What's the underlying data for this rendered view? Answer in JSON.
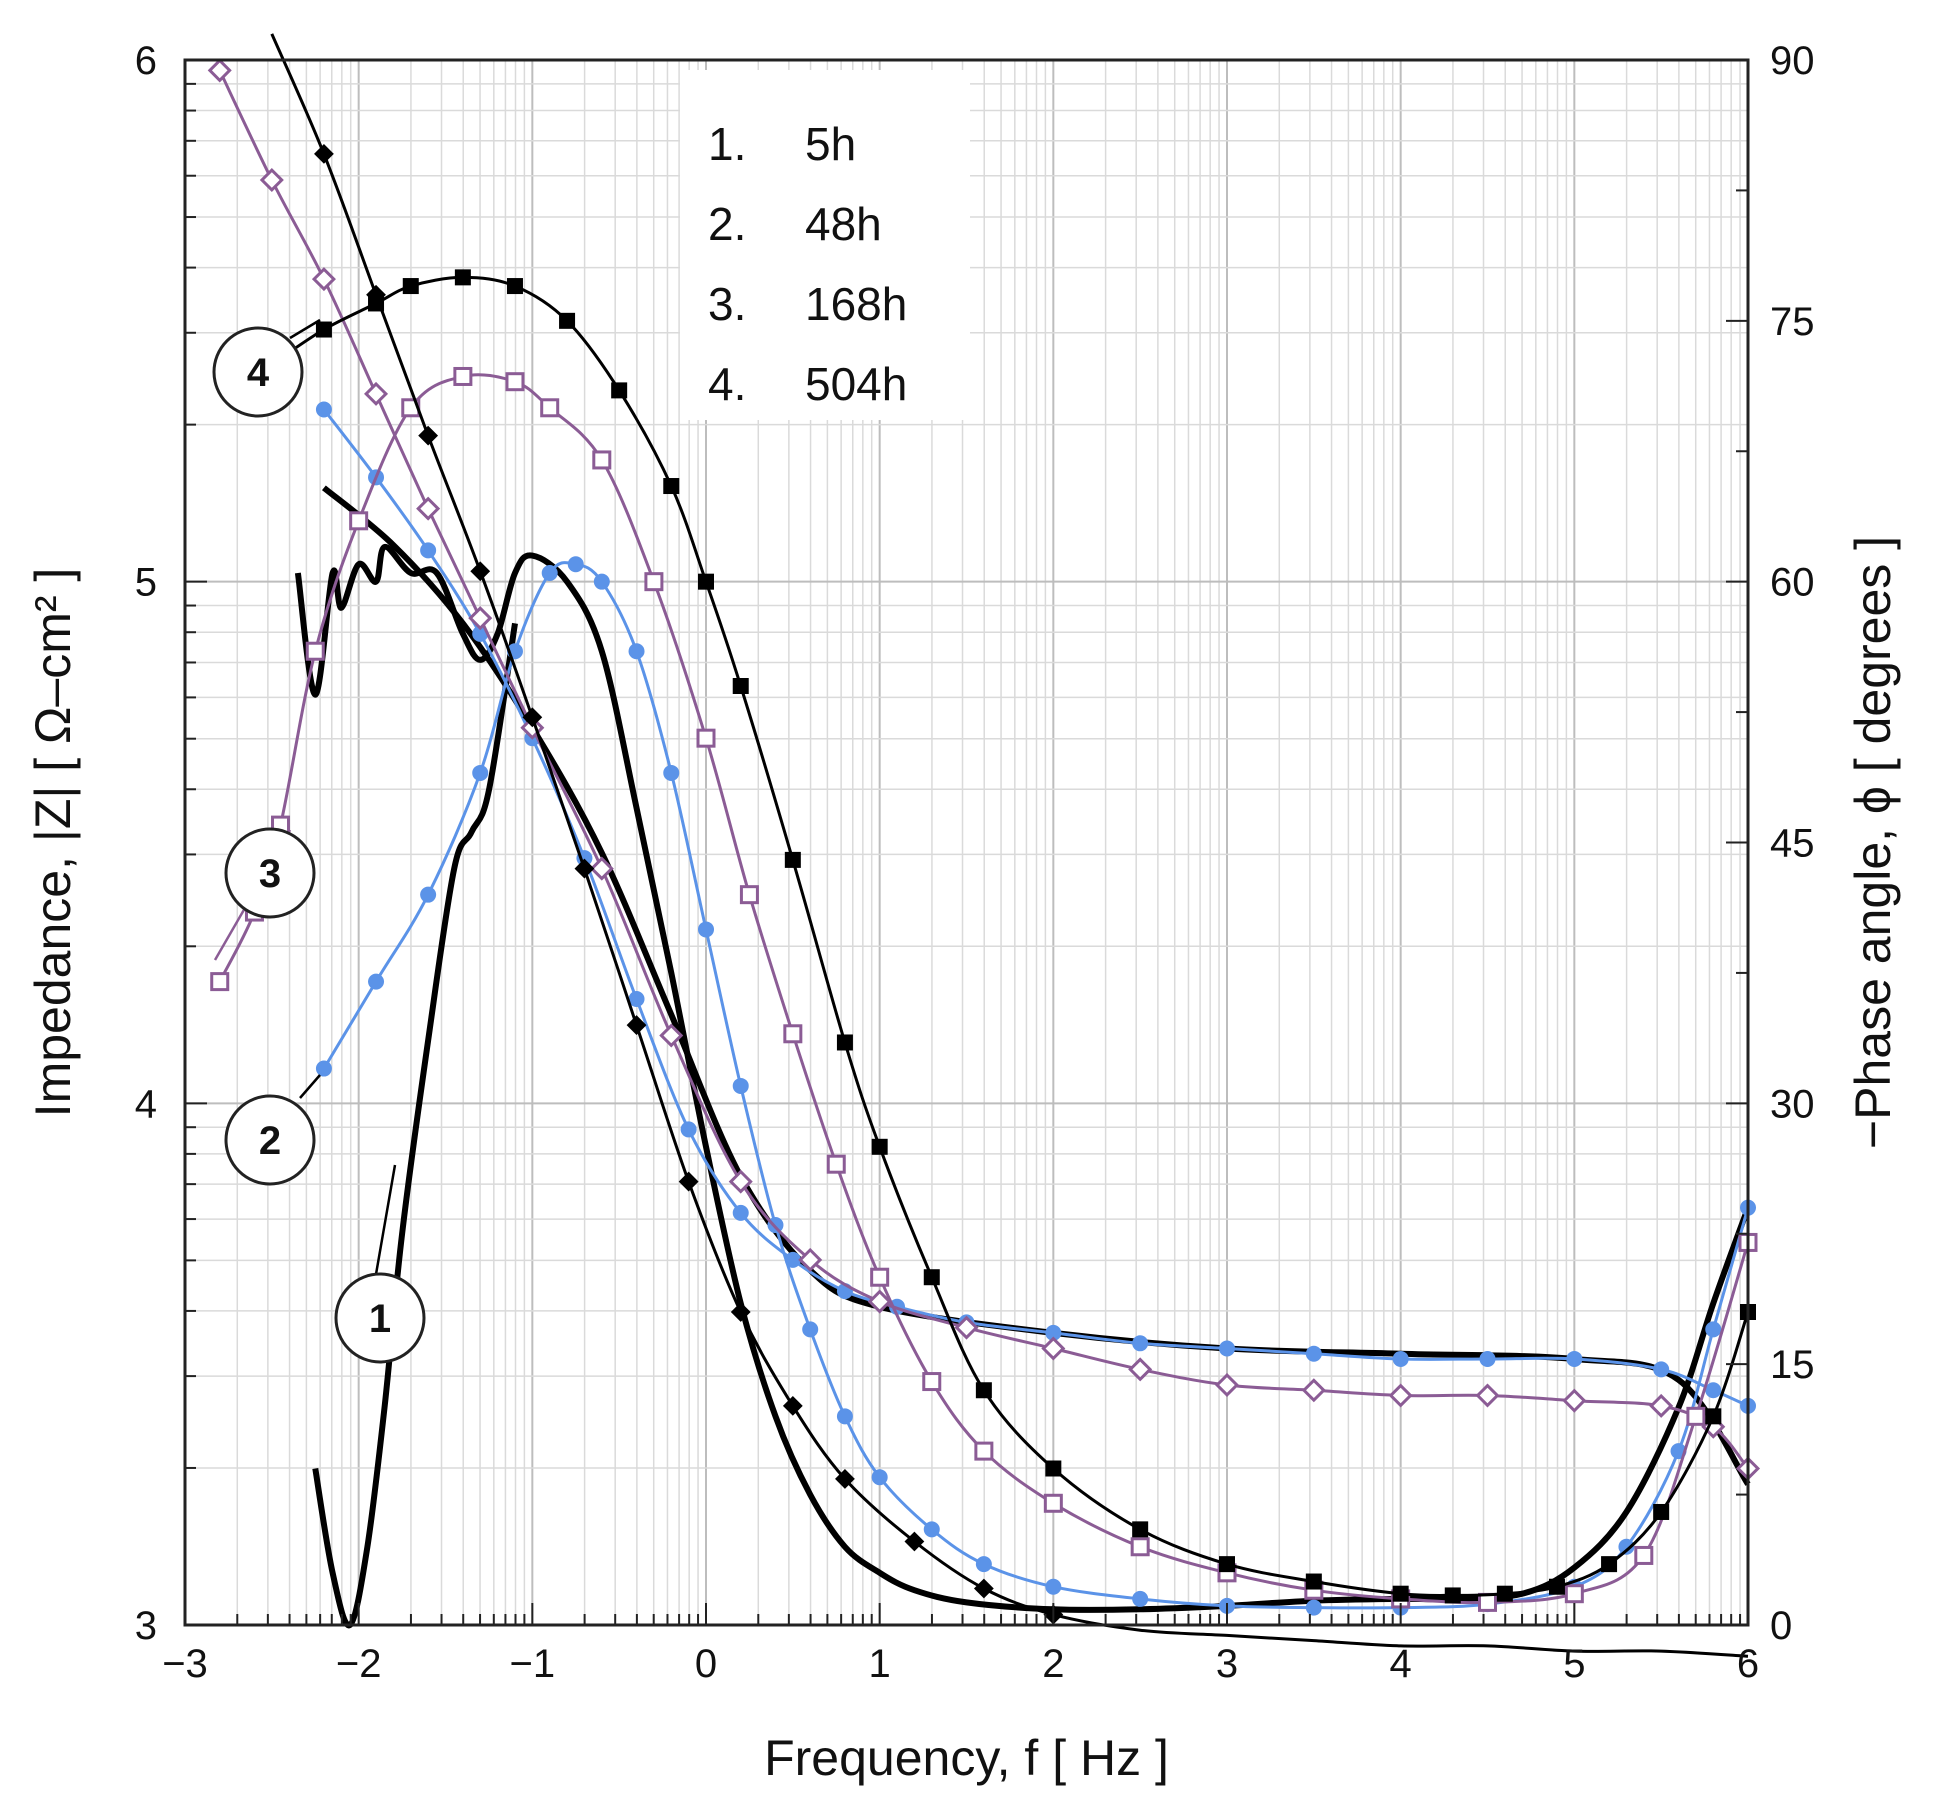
{
  "chart_data": {
    "type": "line",
    "xlabel": "Frequency, f [ Hz ]",
    "ylabel_left": "Impedance, |Z| [ Ω–cm² ]",
    "ylabel_right": "−Phase angle, ϕ [ degrees ]",
    "xlim": [
      -3,
      6
    ],
    "ylim_left": [
      3,
      6
    ],
    "ylim_right": [
      0,
      90
    ],
    "x_scale": "log10 (exponent labels)",
    "y_left_scale": "log10 (exponent labels)",
    "grid": true,
    "x_ticks": [
      "−3",
      "−2",
      "−1",
      "0",
      "1",
      "2",
      "3",
      "4",
      "5",
      "6"
    ],
    "y_left_ticks": [
      "3",
      "4",
      "5",
      "6"
    ],
    "y_right_ticks": [
      "0",
      "15",
      "30",
      "45",
      "60",
      "75",
      "90"
    ],
    "legend": {
      "placement": "top-center",
      "entries": [
        {
          "num": "1.",
          "label": "5h"
        },
        {
          "num": "2.",
          "label": "48h"
        },
        {
          "num": "3.",
          "label": "168h"
        },
        {
          "num": "4.",
          "label": "504h"
        }
      ]
    },
    "callouts": [
      "1",
      "2",
      "3",
      "4"
    ],
    "series": [
      {
        "id": "1",
        "quantity": "impedance",
        "axis": "left",
        "color": "#000000",
        "marker": "none",
        "width": 6,
        "x": [
          -2.2,
          -1.8,
          -1.4,
          -1.0,
          -0.6,
          -0.2,
          0.2,
          0.6,
          1.0,
          2.0,
          3.0,
          4.0,
          5.0,
          5.6,
          6.0
        ],
        "y": [
          5.18,
          5.07,
          4.92,
          4.72,
          4.48,
          4.17,
          3.86,
          3.68,
          3.61,
          3.56,
          3.53,
          3.52,
          3.51,
          3.47,
          3.27
        ]
      },
      {
        "id": "1",
        "quantity": "phase",
        "axis": "right",
        "color": "#000000",
        "marker": "none",
        "width": 6,
        "x": [
          -2.35,
          -2.25,
          -2.15,
          -2.1,
          -2.0,
          -1.9,
          -1.85,
          -1.7,
          -1.55,
          -1.4,
          -1.3,
          -1.2,
          -1.1,
          -1.0,
          -0.8,
          -0.6,
          -0.4,
          -0.2,
          0.0,
          0.2,
          0.4,
          0.6,
          0.8,
          1.0,
          1.2,
          1.5,
          2.0,
          2.5,
          3.0,
          3.5,
          4.0,
          4.3,
          4.7,
          5.0,
          5.3,
          5.6,
          5.8,
          6.0
        ],
        "y": [
          60.5,
          53.5,
          60.5,
          58.5,
          61.0,
          60.0,
          62.0,
          60.5,
          60.5,
          57.0,
          55.5,
          57.0,
          60.5,
          61.5,
          60.0,
          56.0,
          47.0,
          37.5,
          27.5,
          18.5,
          12.0,
          7.5,
          4.5,
          3.0,
          2.0,
          1.3,
          0.9,
          0.9,
          1.1,
          1.4,
          1.5,
          1.5,
          1.8,
          3.3,
          6.5,
          12.5,
          18.5,
          24.0
        ]
      },
      {
        "id": "1",
        "quantity": "impedance-low-frequency-noisy",
        "axis": "left",
        "color": "#000000",
        "marker": "none",
        "width": 6,
        "x": [
          -2.25,
          -2.15,
          -2.05,
          -1.95,
          -1.85,
          -1.75,
          -1.6,
          -1.45,
          -1.35,
          -1.25,
          -1.1
        ],
        "y": [
          3.3,
          3.1,
          3.0,
          3.15,
          3.42,
          3.75,
          4.12,
          4.45,
          4.52,
          4.6,
          4.92
        ]
      },
      {
        "id": "2",
        "quantity": "impedance",
        "axis": "left",
        "color": "#5b93e8",
        "marker": "dot",
        "width": 3,
        "x": [
          -2.2,
          -1.9,
          -1.6,
          -1.3,
          -1.0,
          -0.7,
          -0.4,
          -0.1,
          0.2,
          0.5,
          0.8,
          1.1,
          1.5,
          2.0,
          2.5,
          3.0,
          3.5,
          4.0,
          4.5,
          5.0,
          5.5,
          5.8,
          6.0
        ],
        "y": [
          5.33,
          5.2,
          5.06,
          4.9,
          4.7,
          4.47,
          4.2,
          3.95,
          3.79,
          3.7,
          3.64,
          3.61,
          3.58,
          3.56,
          3.54,
          3.53,
          3.52,
          3.51,
          3.51,
          3.51,
          3.49,
          3.45,
          3.42
        ]
      },
      {
        "id": "2",
        "quantity": "phase",
        "axis": "right",
        "color": "#5b93e8",
        "marker": "dot",
        "width": 3,
        "x": [
          -2.2,
          -1.9,
          -1.6,
          -1.3,
          -1.1,
          -0.9,
          -0.75,
          -0.6,
          -0.4,
          -0.2,
          0.0,
          0.2,
          0.4,
          0.6,
          0.8,
          1.0,
          1.3,
          1.6,
          2.0,
          2.5,
          3.0,
          3.5,
          4.0,
          4.5,
          5.0,
          5.3,
          5.6,
          5.8,
          6.0
        ],
        "y": [
          32.0,
          37.0,
          42.0,
          49.0,
          56.0,
          60.5,
          61.0,
          60.0,
          56.0,
          49.0,
          40.0,
          31.0,
          23.0,
          17.0,
          12.0,
          8.5,
          5.5,
          3.5,
          2.2,
          1.5,
          1.1,
          1.0,
          1.0,
          1.2,
          2.2,
          4.5,
          10.0,
          17.0,
          24.0
        ]
      },
      {
        "id": "3",
        "quantity": "impedance",
        "axis": "left",
        "color": "#8b5c95",
        "marker": "diamond-open",
        "width": 3,
        "x": [
          -2.8,
          -2.5,
          -2.2,
          -1.9,
          -1.6,
          -1.3,
          -1.0,
          -0.6,
          -0.2,
          0.2,
          0.6,
          1.0,
          1.5,
          2.0,
          2.5,
          3.0,
          3.5,
          4.0,
          4.5,
          5.0,
          5.5,
          5.8,
          6.0
        ],
        "y": [
          5.98,
          5.77,
          5.58,
          5.36,
          5.14,
          4.93,
          4.72,
          4.45,
          4.13,
          3.85,
          3.7,
          3.62,
          3.57,
          3.53,
          3.49,
          3.46,
          3.45,
          3.44,
          3.44,
          3.43,
          3.42,
          3.38,
          3.3
        ]
      },
      {
        "id": "3",
        "quantity": "phase",
        "axis": "right",
        "color": "#8b5c95",
        "marker": "square-open",
        "width": 3,
        "x": [
          -2.8,
          -2.6,
          -2.45,
          -2.25,
          -2.0,
          -1.7,
          -1.4,
          -1.1,
          -0.9,
          -0.6,
          -0.3,
          0.0,
          0.25,
          0.5,
          0.75,
          1.0,
          1.3,
          1.6,
          2.0,
          2.5,
          3.0,
          3.5,
          4.0,
          4.5,
          5.0,
          5.4,
          5.7,
          6.0
        ],
        "y": [
          37.0,
          41.0,
          46.0,
          56.0,
          63.5,
          70.0,
          71.8,
          71.5,
          70.0,
          67.0,
          60.0,
          51.0,
          42.0,
          34.0,
          26.5,
          20.0,
          14.0,
          10.0,
          7.0,
          4.5,
          3.0,
          2.0,
          1.5,
          1.3,
          1.8,
          4.0,
          12.0,
          22.0
        ]
      },
      {
        "id": "4",
        "quantity": "impedance",
        "axis": "left",
        "color": "#000000",
        "marker": "diamond-filled",
        "width": 3,
        "x": [
          -2.5,
          -2.2,
          -1.9,
          -1.6,
          -1.3,
          -1.0,
          -0.7,
          -0.4,
          -0.1,
          0.2,
          0.5,
          0.8,
          1.2,
          1.6,
          2.0,
          2.5,
          3.0,
          3.5,
          4.0,
          4.5,
          5.0,
          5.5,
          6.0
        ],
        "y": [
          6.05,
          5.82,
          5.55,
          5.28,
          5.02,
          4.74,
          4.45,
          4.15,
          3.85,
          3.6,
          3.42,
          3.28,
          3.16,
          3.07,
          3.02,
          2.99,
          2.98,
          2.97,
          2.96,
          2.96,
          2.95,
          2.95,
          2.94
        ]
      },
      {
        "id": "4",
        "quantity": "phase",
        "axis": "right",
        "color": "#000000",
        "marker": "square-filled",
        "width": 3,
        "x": [
          -2.5,
          -2.2,
          -1.9,
          -1.7,
          -1.4,
          -1.1,
          -0.8,
          -0.5,
          -0.2,
          0.0,
          0.2,
          0.5,
          0.8,
          1.0,
          1.3,
          1.6,
          2.0,
          2.5,
          3.0,
          3.5,
          4.0,
          4.3,
          4.6,
          4.9,
          5.2,
          5.5,
          5.8,
          6.0
        ],
        "y": [
          72.5,
          74.5,
          76.0,
          77.0,
          77.5,
          77.0,
          75.0,
          71.0,
          65.5,
          60.0,
          54.0,
          44.0,
          33.5,
          27.5,
          20.0,
          13.5,
          9.0,
          5.5,
          3.5,
          2.5,
          1.8,
          1.7,
          1.8,
          2.2,
          3.5,
          6.5,
          12.0,
          18.0
        ]
      }
    ]
  }
}
